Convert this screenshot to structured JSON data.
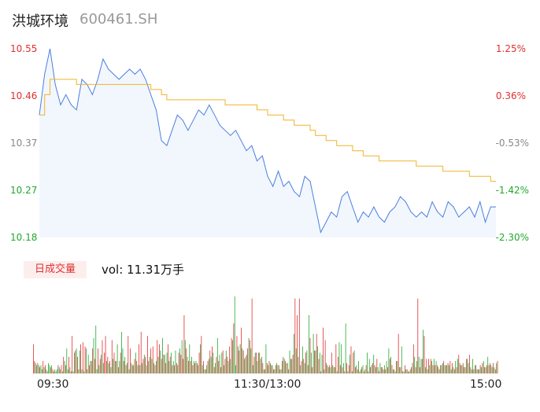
{
  "header": {
    "name": "洪城环境",
    "code": "600461.SH"
  },
  "colors": {
    "price": "#4a7fe0",
    "avg": "#f0b429",
    "up": "#e03030",
    "down": "#22a830",
    "flat": "#888888"
  },
  "chart_data": {
    "type": "line",
    "price_axis": {
      "ticks": [
        "10.55",
        "10.46",
        "10.37",
        "10.27",
        "10.18"
      ],
      "pct_ticks": [
        "1.25%",
        "0.36%",
        "-0.53%",
        "-1.42%",
        "-2.30%"
      ],
      "range": [
        10.18,
        10.55
      ]
    },
    "x_ticks": [
      "09:30",
      "11:30/13:00",
      "15:00"
    ],
    "series": [
      {
        "values": [
          10.42,
          10.5,
          10.55,
          10.48,
          10.44,
          10.46,
          10.44,
          10.43,
          10.49,
          10.48,
          10.46,
          10.49,
          10.53,
          10.51,
          10.5,
          10.49,
          10.5,
          10.51,
          10.5,
          10.51,
          10.49,
          10.46,
          10.43,
          10.37,
          10.36,
          10.39,
          10.42,
          10.41,
          10.39,
          10.41,
          10.43,
          10.42,
          10.44,
          10.42,
          10.4,
          10.39,
          10.38,
          10.39,
          10.37,
          10.35,
          10.36,
          10.33,
          10.34,
          10.3,
          10.28,
          10.31,
          10.28,
          10.29,
          10.27,
          10.26,
          10.3,
          10.29,
          10.24,
          10.19,
          10.21,
          10.23,
          10.22,
          10.26,
          10.27,
          10.24,
          10.21,
          10.23,
          10.22,
          10.24,
          10.22,
          10.21,
          10.23,
          10.24,
          10.26,
          10.25,
          10.23,
          10.22,
          10.23,
          10.22,
          10.25,
          10.23,
          10.22,
          10.25,
          10.24,
          10.22,
          10.23,
          10.24,
          10.22,
          10.25,
          10.21,
          10.24,
          10.24
        ]
      },
      {
        "values": [
          10.42,
          10.46,
          10.49,
          10.49,
          10.49,
          10.49,
          10.49,
          10.48,
          10.48,
          10.48,
          10.48,
          10.48,
          10.48,
          10.48,
          10.48,
          10.48,
          10.48,
          10.48,
          10.48,
          10.48,
          10.48,
          10.47,
          10.47,
          10.46,
          10.45,
          10.45,
          10.45,
          10.45,
          10.45,
          10.45,
          10.45,
          10.45,
          10.45,
          10.45,
          10.45,
          10.44,
          10.44,
          10.44,
          10.44,
          10.44,
          10.44,
          10.43,
          10.43,
          10.42,
          10.42,
          10.42,
          10.41,
          10.41,
          10.4,
          10.4,
          10.4,
          10.39,
          10.38,
          10.38,
          10.37,
          10.37,
          10.36,
          10.36,
          10.36,
          10.35,
          10.35,
          10.34,
          10.34,
          10.34,
          10.33,
          10.33,
          10.33,
          10.33,
          10.33,
          10.33,
          10.33,
          10.32,
          10.32,
          10.32,
          10.32,
          10.32,
          10.31,
          10.31,
          10.31,
          10.31,
          10.31,
          10.3,
          10.3,
          10.3,
          10.3,
          10.29,
          10.29
        ]
      }
    ],
    "volume_label": "日成交量",
    "volume_text": "vol: 11.31万手",
    "volume": [
      14,
      6,
      5,
      4,
      5,
      4,
      3,
      4,
      2,
      6,
      3,
      4,
      2,
      1,
      5,
      4,
      3,
      4,
      2,
      1,
      2,
      1,
      2,
      4,
      3,
      2,
      4,
      1,
      8,
      6,
      4,
      12,
      2,
      8,
      3,
      1,
      18,
      1,
      10,
      11,
      12,
      8,
      2,
      11,
      14,
      2,
      15,
      1,
      13,
      12,
      2,
      9,
      4,
      6,
      6,
      12,
      17,
      7,
      23,
      2,
      12,
      4,
      7,
      9,
      16,
      5,
      10,
      18,
      6,
      8,
      5,
      6,
      3,
      16,
      7,
      10,
      6,
      6,
      14,
      3,
      6,
      10,
      20,
      12,
      6,
      8,
      4,
      5,
      18,
      2,
      12,
      5,
      4,
      4,
      7,
      10,
      6,
      4,
      14,
      4,
      20,
      5,
      7,
      9,
      8,
      4,
      18,
      6,
      8,
      12,
      7,
      13,
      5,
      4,
      6,
      16,
      8,
      14,
      11,
      7,
      17,
      9,
      9,
      5,
      10,
      14,
      6,
      8,
      10,
      4,
      6,
      4,
      11,
      5,
      4,
      10,
      12,
      9,
      16,
      7,
      28,
      16,
      12,
      8,
      6,
      14,
      6,
      8,
      4,
      6,
      5,
      6,
      5,
      4,
      10,
      14,
      18,
      4,
      6,
      2,
      2,
      4,
      6,
      7,
      11,
      8,
      13,
      10,
      3,
      5,
      8,
      17,
      6,
      9,
      3,
      10,
      11,
      4,
      7,
      11,
      8,
      6,
      13,
      7,
      17,
      16,
      24,
      37,
      4,
      18,
      13,
      11,
      14,
      22,
      12,
      11,
      7,
      8,
      9,
      12,
      17,
      16,
      12,
      36,
      4,
      8,
      10,
      10,
      6,
      10,
      10,
      7,
      8,
      5,
      2,
      2,
      14,
      5,
      4,
      6,
      5,
      4,
      4,
      2,
      2,
      4,
      5,
      4,
      4,
      2,
      2,
      6,
      8,
      7,
      6,
      5,
      5,
      2,
      11,
      7,
      7,
      9,
      19,
      36,
      12,
      28,
      8,
      36,
      4,
      6,
      13,
      7,
      5,
      10,
      11,
      4,
      28,
      17,
      10,
      3,
      19,
      11,
      11,
      19,
      13,
      7,
      10,
      1,
      9,
      22,
      2,
      16,
      5,
      4,
      3,
      4,
      3,
      10,
      4,
      3,
      3,
      14,
      1,
      8,
      15,
      4,
      14,
      3,
      5,
      1,
      24,
      5,
      1,
      4,
      9,
      13,
      1,
      10,
      11,
      3,
      4,
      2,
      6,
      1,
      2,
      3,
      4,
      1,
      2,
      4,
      10,
      1,
      7,
      3,
      4,
      5,
      9,
      4,
      3,
      7,
      3,
      1,
      5,
      3,
      3,
      2,
      4,
      2,
      6,
      3,
      12,
      7,
      8,
      4,
      2,
      2,
      1,
      6,
      6,
      19,
      3,
      3,
      13,
      1,
      1,
      4,
      2,
      2,
      1,
      1,
      2,
      3,
      5,
      14,
      8,
      3,
      6,
      36,
      8,
      3,
      7,
      7,
      21,
      18,
      3,
      7,
      2,
      7,
      4,
      7,
      6,
      4,
      7,
      4,
      6,
      4,
      3,
      2,
      4,
      4,
      5,
      6,
      4,
      4,
      4,
      5,
      4,
      6,
      2,
      5,
      3,
      2,
      6,
      3,
      7,
      9,
      5,
      4,
      4,
      5,
      3,
      3,
      7,
      7,
      5,
      9,
      3,
      2,
      7,
      2,
      4,
      4,
      2,
      2,
      2,
      4,
      3,
      5,
      6,
      3,
      3,
      4,
      8,
      4,
      5,
      4,
      3,
      5,
      3,
      2,
      5,
      6
    ],
    "volume_dir": [
      "u",
      "u",
      "d",
      "d",
      "u",
      "d",
      "u",
      "d",
      "d",
      "u",
      "d",
      "u",
      "d",
      "u",
      "d",
      "d",
      "u",
      "d",
      "u",
      "u",
      "d",
      "d",
      "d",
      "u",
      "d",
      "d",
      "u",
      "d",
      "u",
      "d",
      "u",
      "d",
      "d",
      "u",
      "d",
      "u",
      "u",
      "d",
      "d",
      "u",
      "d",
      "u",
      "u",
      "d",
      "u",
      "d",
      "u",
      "d",
      "u",
      "d",
      "u",
      "d",
      "u",
      "u",
      "d",
      "u",
      "d",
      "u",
      "d",
      "d",
      "u",
      "d",
      "u",
      "d",
      "u",
      "d",
      "u",
      "u",
      "d",
      "u",
      "d",
      "u",
      "d",
      "u",
      "d",
      "u",
      "d",
      "u",
      "d",
      "u",
      "d",
      "u",
      "d",
      "d",
      "u",
      "d",
      "u",
      "d",
      "u",
      "d",
      "u",
      "d",
      "u",
      "d",
      "u",
      "d",
      "u",
      "d",
      "u",
      "d",
      "u",
      "d",
      "u",
      "d",
      "u",
      "d",
      "u",
      "u",
      "d",
      "u",
      "d",
      "u",
      "d",
      "u",
      "d",
      "u",
      "d",
      "u",
      "d",
      "u",
      "d",
      "u",
      "d",
      "u",
      "d",
      "u",
      "d",
      "u",
      "d",
      "u",
      "d",
      "u",
      "d",
      "u",
      "d",
      "u",
      "d",
      "u",
      "d",
      "u",
      "u",
      "d",
      "u",
      "d",
      "u",
      "d",
      "u",
      "d",
      "u",
      "d",
      "u",
      "d",
      "u",
      "d",
      "u",
      "d",
      "u",
      "d",
      "u",
      "d",
      "u",
      "d",
      "u",
      "d",
      "u",
      "d",
      "u",
      "d",
      "u",
      "d",
      "u",
      "d",
      "u",
      "d",
      "u",
      "d",
      "u",
      "d",
      "u",
      "d",
      "u",
      "d",
      "u",
      "d",
      "u",
      "d",
      "u",
      "d",
      "d",
      "u",
      "d",
      "u",
      "d",
      "u",
      "d",
      "u",
      "d",
      "u",
      "d",
      "u",
      "d",
      "u",
      "d",
      "u",
      "d",
      "u",
      "d",
      "u",
      "d",
      "u",
      "d",
      "u",
      "d",
      "u",
      "d",
      "u",
      "d",
      "u",
      "d",
      "u",
      "d",
      "u",
      "d",
      "u",
      "d",
      "u",
      "d",
      "u",
      "d",
      "u",
      "d",
      "u",
      "d",
      "u",
      "d",
      "u",
      "d",
      "u",
      "d",
      "u",
      "d",
      "u",
      "d",
      "u",
      "d",
      "u",
      "d",
      "u",
      "d",
      "u",
      "d",
      "u",
      "d",
      "u",
      "d",
      "u",
      "d",
      "u",
      "d",
      "u",
      "d",
      "u",
      "d",
      "u",
      "d",
      "u",
      "d",
      "u",
      "d",
      "u",
      "d",
      "u",
      "d",
      "u",
      "d",
      "u",
      "d",
      "u",
      "d",
      "u",
      "d",
      "u",
      "d",
      "u",
      "d",
      "u",
      "d",
      "u",
      "d",
      "u",
      "d",
      "u",
      "d",
      "u",
      "d",
      "u",
      "d",
      "u",
      "d",
      "u",
      "d",
      "u",
      "d",
      "u",
      "d",
      "u",
      "d",
      "u",
      "d",
      "u",
      "d",
      "u",
      "d",
      "u",
      "d",
      "u",
      "d",
      "u",
      "d",
      "u",
      "d",
      "u",
      "d",
      "u",
      "d",
      "u",
      "d",
      "u",
      "d",
      "u",
      "d",
      "u",
      "d",
      "u",
      "d",
      "u",
      "d",
      "u",
      "d",
      "u",
      "d",
      "u",
      "d",
      "u",
      "d",
      "u",
      "d",
      "u",
      "d",
      "u",
      "d",
      "u",
      "d",
      "u",
      "d",
      "u",
      "d",
      "u",
      "d",
      "u",
      "d",
      "u",
      "d",
      "u",
      "d",
      "u",
      "d",
      "u",
      "d",
      "u",
      "d",
      "u",
      "d",
      "u",
      "d",
      "u",
      "d",
      "u",
      "d",
      "u",
      "d",
      "u",
      "d",
      "u",
      "d",
      "u",
      "d",
      "u",
      "d",
      "u",
      "d",
      "u",
      "d",
      "u",
      "d",
      "u",
      "d",
      "u",
      "d",
      "u",
      "d",
      "u",
      "d",
      "u",
      "d",
      "u",
      "d",
      "u",
      "d",
      "u",
      "d",
      "u",
      "d",
      "u",
      "d",
      "u",
      "d",
      "u",
      "d",
      "u",
      "d",
      "u",
      "d",
      "u",
      "d",
      "u",
      "d",
      "u",
      "d",
      "u",
      "d",
      "u",
      "d",
      "u",
      "d",
      "u",
      "d",
      "u"
    ]
  }
}
